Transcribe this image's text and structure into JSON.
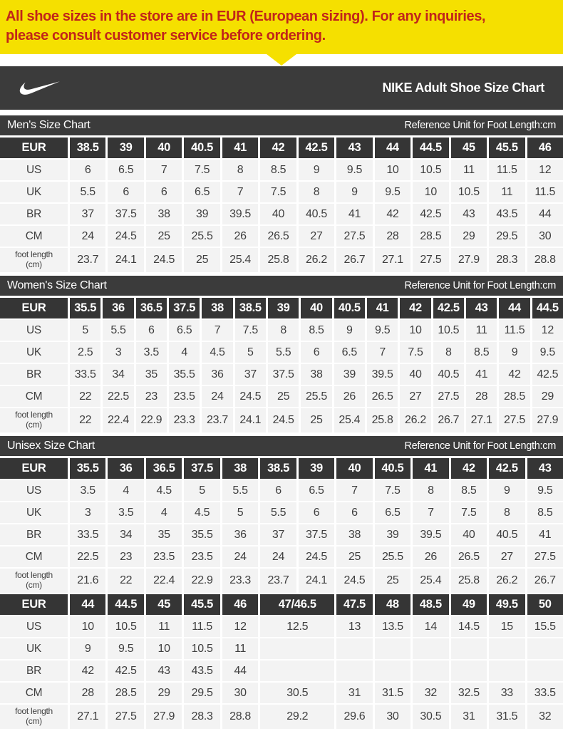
{
  "banner": {
    "lines": [
      "All shoe sizes in the store are in EUR (European sizing). For any inquiries,",
      "please consult customer service before ordering."
    ],
    "bg_color": "#f5e000",
    "text_color": "#c1251a"
  },
  "header": {
    "title": "NIKE Adult Shoe Size Chart",
    "logo_icon": "nike-swoosh-icon",
    "bg_color": "#3b3b3b"
  },
  "colors": {
    "bar_bg": "#3b3b3b",
    "eur_cell_bg": "#353535",
    "data_cell_bg": "#f3f3f3"
  },
  "sections": [
    {
      "id": "mens",
      "title": "Men's Size Chart",
      "note": "Reference Unit for Foot Length:cm",
      "cols": 13,
      "rows": [
        {
          "label": "EUR",
          "type": "eur",
          "cells": [
            "38.5",
            "39",
            "40",
            "40.5",
            "41",
            "42",
            "42.5",
            "43",
            "44",
            "44.5",
            "45",
            "45.5",
            "46"
          ]
        },
        {
          "label": "US",
          "cells": [
            "6",
            "6.5",
            "7",
            "7.5",
            "8",
            "8.5",
            "9",
            "9.5",
            "10",
            "10.5",
            "11",
            "11.5",
            "12"
          ]
        },
        {
          "label": "UK",
          "cells": [
            "5.5",
            "6",
            "6",
            "6.5",
            "7",
            "7.5",
            "8",
            "9",
            "9.5",
            "10",
            "10.5",
            "11",
            "11.5"
          ]
        },
        {
          "label": "BR",
          "cells": [
            "37",
            "37.5",
            "38",
            "39",
            "39.5",
            "40",
            "40.5",
            "41",
            "42",
            "42.5",
            "43",
            "43.5",
            "44"
          ]
        },
        {
          "label": "CM",
          "cells": [
            "24",
            "24.5",
            "25",
            "25.5",
            "26",
            "26.5",
            "27",
            "27.5",
            "28",
            "28.5",
            "29",
            "29.5",
            "30"
          ]
        },
        {
          "label": "foot length",
          "label2": "(cm)",
          "cells": [
            "23.7",
            "24.1",
            "24.5",
            "25",
            "25.4",
            "25.8",
            "26.2",
            "26.7",
            "27.1",
            "27.5",
            "27.9",
            "28.3",
            "28.8"
          ]
        }
      ]
    },
    {
      "id": "womens",
      "title": "Women's Size Chart",
      "note": "Reference Unit for Foot Length:cm",
      "cols": 15,
      "rows": [
        {
          "label": "EUR",
          "type": "eur",
          "cells": [
            "35.5",
            "36",
            "36.5",
            "37.5",
            "38",
            "38.5",
            "39",
            "40",
            "40.5",
            "41",
            "42",
            "42.5",
            "43",
            "44",
            "44.5"
          ]
        },
        {
          "label": "US",
          "cells": [
            "5",
            "5.5",
            "6",
            "6.5",
            "7",
            "7.5",
            "8",
            "8.5",
            "9",
            "9.5",
            "10",
            "10.5",
            "11",
            "11.5",
            "12"
          ]
        },
        {
          "label": "UK",
          "cells": [
            "2.5",
            "3",
            "3.5",
            "4",
            "4.5",
            "5",
            "5.5",
            "6",
            "6.5",
            "7",
            "7.5",
            "8",
            "8.5",
            "9",
            "9.5"
          ]
        },
        {
          "label": "BR",
          "cells": [
            "33.5",
            "34",
            "35",
            "35.5",
            "36",
            "37",
            "37.5",
            "38",
            "39",
            "39.5",
            "40",
            "40.5",
            "41",
            "42",
            "42.5"
          ]
        },
        {
          "label": "CM",
          "cells": [
            "22",
            "22.5",
            "23",
            "23.5",
            "24",
            "24.5",
            "25",
            "25.5",
            "26",
            "26.5",
            "27",
            "27.5",
            "28",
            "28.5",
            "29"
          ]
        },
        {
          "label": "foot length",
          "label2": "(cm)",
          "cells": [
            "22",
            "22.4",
            "22.9",
            "23.3",
            "23.7",
            "24.1",
            "24.5",
            "25",
            "25.4",
            "25.8",
            "26.2",
            "26.7",
            "27.1",
            "27.5",
            "27.9"
          ]
        }
      ]
    },
    {
      "id": "unisex",
      "title": "Unisex Size Chart",
      "note": "Reference Unit for Foot Length:cm",
      "cols": 13,
      "rows": [
        {
          "label": "EUR",
          "type": "eur",
          "cells": [
            "35.5",
            "36",
            "36.5",
            "37.5",
            "38",
            "38.5",
            "39",
            "40",
            "40.5",
            "41",
            "42",
            "42.5",
            "43"
          ]
        },
        {
          "label": "US",
          "cells": [
            "3.5",
            "4",
            "4.5",
            "5",
            "5.5",
            "6",
            "6.5",
            "7",
            "7.5",
            "8",
            "8.5",
            "9",
            "9.5"
          ]
        },
        {
          "label": "UK",
          "cells": [
            "3",
            "3.5",
            "4",
            "4.5",
            "5",
            "5.5",
            "6",
            "6",
            "6.5",
            "7",
            "7.5",
            "8",
            "8.5"
          ]
        },
        {
          "label": "BR",
          "cells": [
            "33.5",
            "34",
            "35",
            "35.5",
            "36",
            "37",
            "37.5",
            "38",
            "39",
            "39.5",
            "40",
            "40.5",
            "41"
          ]
        },
        {
          "label": "CM",
          "cells": [
            "22.5",
            "23",
            "23.5",
            "23.5",
            "24",
            "24",
            "24.5",
            "25",
            "25.5",
            "26",
            "26.5",
            "27",
            "27.5"
          ]
        },
        {
          "label": "foot length",
          "label2": "(cm)",
          "cells": [
            "21.6",
            "22",
            "22.4",
            "22.9",
            "23.3",
            "23.7",
            "24.1",
            "24.5",
            "25",
            "25.4",
            "25.8",
            "26.2",
            "26.7"
          ]
        },
        {
          "label": "EUR",
          "type": "eur",
          "cells": [
            "44",
            "44.5",
            "45",
            "45.5",
            "46",
            {
              "v": "47/46.5",
              "span": 2
            },
            "47.5",
            "48",
            "48.5",
            "49",
            "49.5",
            "50"
          ]
        },
        {
          "label": "US",
          "cells": [
            "10",
            "10.5",
            "11",
            "11.5",
            "12",
            {
              "v": "12.5",
              "span": 2
            },
            "13",
            "13.5",
            "14",
            "14.5",
            "15",
            "15.5"
          ]
        },
        {
          "label": "UK",
          "cells": [
            "9",
            "9.5",
            "10",
            "10.5",
            "11",
            {
              "v": "",
              "span": 2
            },
            "",
            "",
            "",
            "",
            "",
            ""
          ]
        },
        {
          "label": "BR",
          "cells": [
            "42",
            "42.5",
            "43",
            "43.5",
            "44",
            {
              "v": "",
              "span": 2
            },
            "",
            "",
            "",
            "",
            "",
            ""
          ]
        },
        {
          "label": "CM",
          "cells": [
            "28",
            "28.5",
            "29",
            "29.5",
            "30",
            {
              "v": "30.5",
              "span": 2
            },
            "31",
            "31.5",
            "32",
            "32.5",
            "33",
            "33.5"
          ]
        },
        {
          "label": "foot length",
          "label2": "(cm)",
          "cells": [
            "27.1",
            "27.5",
            "27.9",
            "28.3",
            "28.8",
            {
              "v": "29.2",
              "span": 2
            },
            "29.6",
            "30",
            "30.5",
            "31",
            "31.5",
            "32"
          ]
        }
      ]
    }
  ]
}
